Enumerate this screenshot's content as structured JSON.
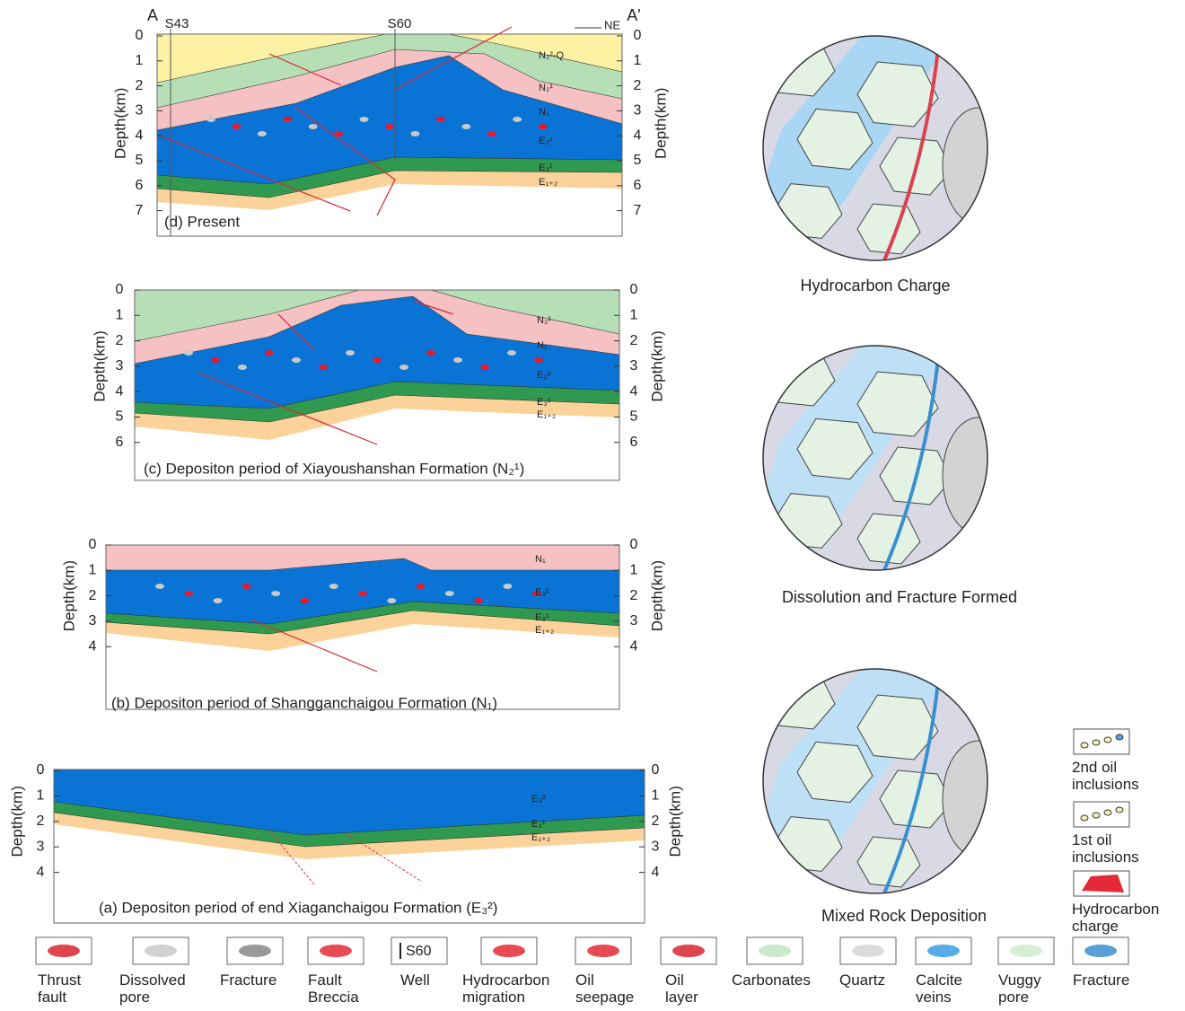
{
  "panels": [
    {
      "caption": "(d) Present",
      "ticks": [
        0,
        1,
        2,
        3,
        4,
        5,
        6,
        7
      ],
      "axis_label": "Depth(km)",
      "layers": [
        "N₂²-Q",
        "N₂¹",
        "N₁",
        "E₃²",
        "E₃¹",
        "E₁₊₂"
      ],
      "section_start": "A",
      "section_end": "A'",
      "wells": [
        "S43",
        "S60"
      ],
      "direction": "NE"
    },
    {
      "caption": "(c) Depositon period of Xiayoushanshan Formation (N₂¹)",
      "ticks": [
        0,
        1,
        2,
        3,
        4,
        5,
        6
      ],
      "axis_label": "Depth(km)",
      "layers": [
        "N₂¹",
        "N₁",
        "E₃²",
        "E₃¹",
        "E₁₊₂"
      ]
    },
    {
      "caption": "(b) Depositon period of Shangganchaigou Formation (N₁)",
      "ticks": [
        0,
        1,
        2,
        3,
        4
      ],
      "axis_label": "Depth(km)",
      "layers": [
        "N₁",
        "E₃²",
        "E₃¹",
        "E₁₊₂"
      ]
    },
    {
      "caption": "(a) Depositon period of end Xiaganchaigou Formation (E₃²)",
      "ticks": [
        0,
        1,
        2,
        3,
        4
      ],
      "axis_label": "Depth(km)",
      "layers": [
        "E₃²",
        "E₃¹",
        "E₁₊₂"
      ]
    }
  ],
  "circles": [
    "Hydrocarbon Charge",
    "Dissolution and Fracture Formed",
    "Mixed Rock Deposition"
  ],
  "side_legend": [
    "2nd oil inclusions",
    "1st oil inclusions",
    "Hydrocarbon charge"
  ],
  "legend": [
    {
      "label": "Thrust fault"
    },
    {
      "label": "Dissolved pore"
    },
    {
      "label": "Fracture"
    },
    {
      "label": "Fault Breccia"
    },
    {
      "label": "Well",
      "icon_text": "S60"
    },
    {
      "label": "Hydrocarbon migration"
    },
    {
      "label": "Oil seepage"
    },
    {
      "label": "Oil layer"
    },
    {
      "label": "Carbonates"
    },
    {
      "label": "Quartz"
    },
    {
      "label": "Calcite veins"
    },
    {
      "label": "Vuggy pore"
    },
    {
      "label": "Fracture"
    }
  ]
}
